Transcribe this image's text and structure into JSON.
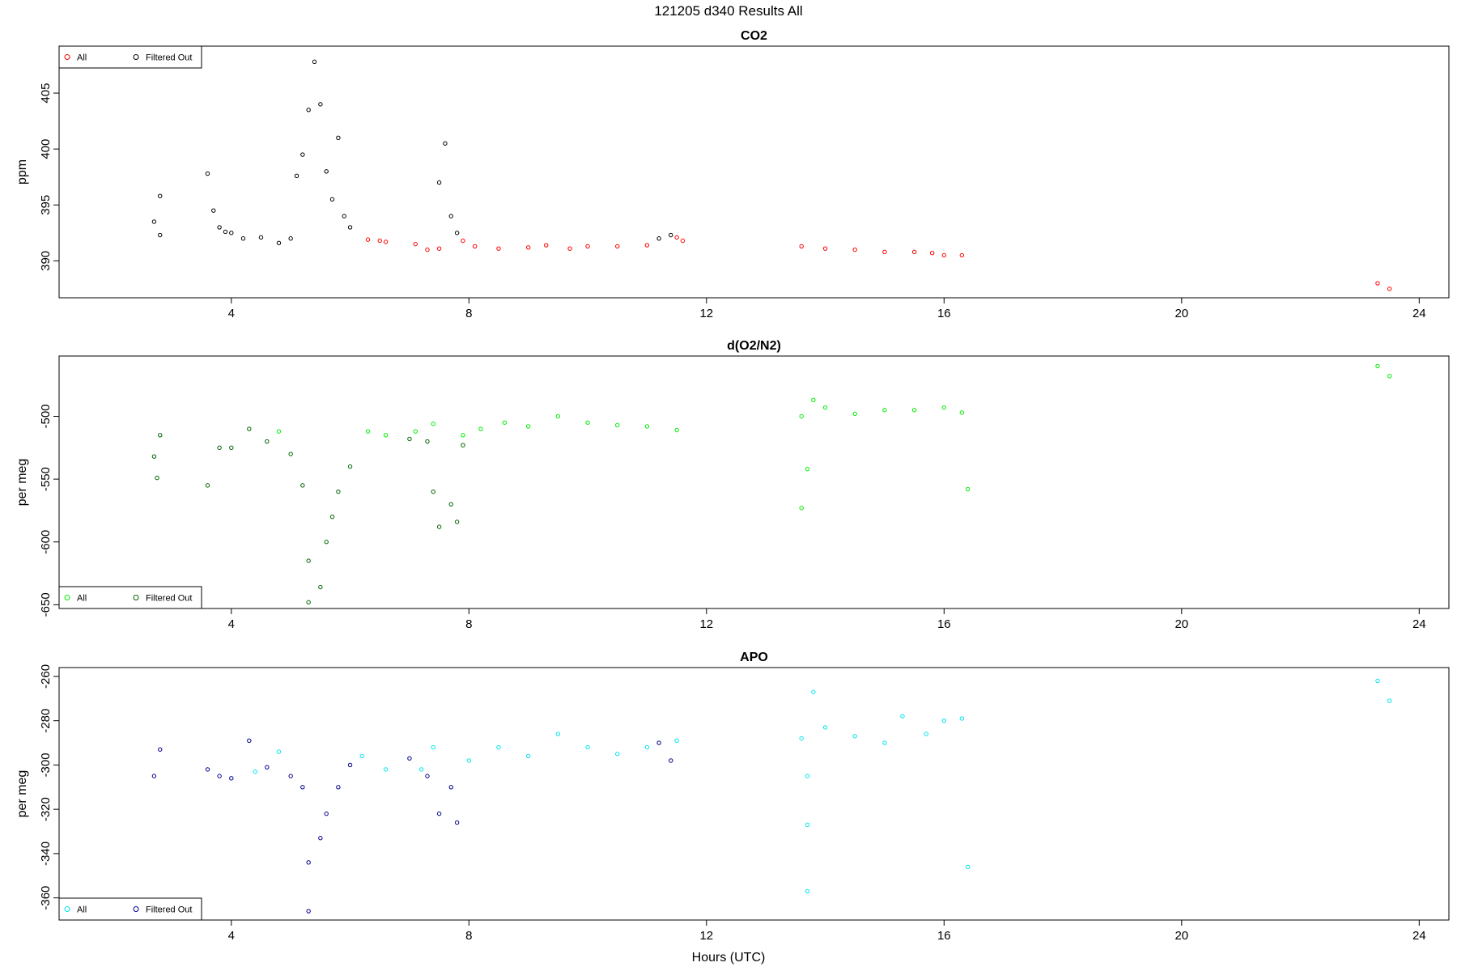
{
  "suptitle": "121205   d340   Results All",
  "xlabel": "Hours (UTC)",
  "chart_data": [
    {
      "type": "scatter",
      "title": "CO2",
      "ylabel": "ppm",
      "xlim": [
        1.1,
        24.5
      ],
      "ylim": [
        386.7,
        409.2
      ],
      "xticks": [
        4,
        8,
        12,
        16,
        20,
        24
      ],
      "yticks": [
        390,
        395,
        400,
        405
      ],
      "legend_position": "top-left",
      "series": [
        {
          "name": "All",
          "color": "#ff0000",
          "points": [
            [
              6.3,
              391.9
            ],
            [
              6.5,
              391.8
            ],
            [
              6.6,
              391.7
            ],
            [
              7.1,
              391.5
            ],
            [
              7.3,
              391.0
            ],
            [
              7.5,
              391.1
            ],
            [
              7.9,
              391.8
            ],
            [
              8.1,
              391.3
            ],
            [
              8.5,
              391.1
            ],
            [
              9.0,
              391.2
            ],
            [
              9.3,
              391.4
            ],
            [
              9.7,
              391.1
            ],
            [
              10.0,
              391.3
            ],
            [
              10.5,
              391.3
            ],
            [
              11.0,
              391.4
            ],
            [
              11.5,
              392.1
            ],
            [
              11.6,
              391.8
            ],
            [
              13.6,
              391.3
            ],
            [
              14.0,
              391.1
            ],
            [
              14.5,
              391.0
            ],
            [
              15.0,
              390.8
            ],
            [
              15.5,
              390.8
            ],
            [
              15.8,
              390.7
            ],
            [
              16.0,
              390.5
            ],
            [
              16.3,
              390.5
            ],
            [
              23.3,
              388.0
            ],
            [
              23.5,
              387.5
            ]
          ]
        },
        {
          "name": "Filtered Out",
          "color": "#000000",
          "points": [
            [
              2.7,
              393.5
            ],
            [
              2.8,
              392.3
            ],
            [
              2.8,
              395.8
            ],
            [
              3.6,
              397.8
            ],
            [
              3.7,
              394.5
            ],
            [
              3.8,
              393.0
            ],
            [
              3.9,
              392.6
            ],
            [
              4.0,
              392.5
            ],
            [
              4.2,
              392.0
            ],
            [
              4.5,
              392.1
            ],
            [
              4.8,
              391.6
            ],
            [
              5.0,
              392.0
            ],
            [
              5.1,
              397.6
            ],
            [
              5.2,
              399.5
            ],
            [
              5.3,
              403.5
            ],
            [
              5.4,
              407.8
            ],
            [
              5.5,
              404.0
            ],
            [
              5.6,
              398.0
            ],
            [
              5.7,
              395.5
            ],
            [
              5.8,
              401.0
            ],
            [
              5.9,
              394.0
            ],
            [
              6.0,
              393.0
            ],
            [
              7.5,
              397.0
            ],
            [
              7.6,
              400.5
            ],
            [
              7.7,
              394.0
            ],
            [
              7.8,
              392.5
            ],
            [
              11.2,
              392.0
            ],
            [
              11.4,
              392.3
            ]
          ]
        }
      ]
    },
    {
      "type": "scatter",
      "title": "d(O2/N2)",
      "ylabel": "per meg",
      "xlim": [
        1.1,
        24.5
      ],
      "ylim": [
        -653,
        -452
      ],
      "xticks": [
        4,
        8,
        12,
        16,
        20,
        24
      ],
      "yticks": [
        -650,
        -600,
        -550,
        -500
      ],
      "legend_position": "bottom-left",
      "series": [
        {
          "name": "All",
          "color": "#00ee00",
          "points": [
            [
              4.8,
              -512
            ],
            [
              6.3,
              -512
            ],
            [
              6.6,
              -515
            ],
            [
              7.1,
              -512
            ],
            [
              7.4,
              -506
            ],
            [
              7.9,
              -515
            ],
            [
              8.2,
              -510
            ],
            [
              8.6,
              -505
            ],
            [
              9.0,
              -508
            ],
            [
              9.5,
              -500
            ],
            [
              10.0,
              -505
            ],
            [
              10.5,
              -507
            ],
            [
              11.0,
              -508
            ],
            [
              11.5,
              -511
            ],
            [
              13.6,
              -500
            ],
            [
              13.8,
              -487
            ],
            [
              14.0,
              -493
            ],
            [
              14.5,
              -498
            ],
            [
              15.0,
              -495
            ],
            [
              15.5,
              -495
            ],
            [
              16.0,
              -493
            ],
            [
              16.3,
              -497
            ],
            [
              13.7,
              -542
            ],
            [
              13.6,
              -573
            ],
            [
              16.4,
              -558
            ],
            [
              23.3,
              -460
            ],
            [
              23.5,
              -468
            ]
          ]
        },
        {
          "name": "Filtered Out",
          "color": "#006400",
          "points": [
            [
              2.7,
              -532
            ],
            [
              2.75,
              -549
            ],
            [
              2.8,
              -515
            ],
            [
              3.6,
              -555
            ],
            [
              3.8,
              -525
            ],
            [
              4.0,
              -525
            ],
            [
              4.3,
              -510
            ],
            [
              4.6,
              -520
            ],
            [
              5.0,
              -530
            ],
            [
              5.2,
              -555
            ],
            [
              5.3,
              -615
            ],
            [
              5.3,
              -648
            ],
            [
              5.5,
              -636
            ],
            [
              5.6,
              -600
            ],
            [
              5.7,
              -580
            ],
            [
              5.8,
              -560
            ],
            [
              6.0,
              -540
            ],
            [
              7.0,
              -518
            ],
            [
              7.3,
              -520
            ],
            [
              7.4,
              -560
            ],
            [
              7.5,
              -588
            ],
            [
              7.7,
              -570
            ],
            [
              7.8,
              -584
            ],
            [
              7.9,
              -523
            ]
          ]
        }
      ]
    },
    {
      "type": "scatter",
      "title": "APO",
      "ylabel": "per meg",
      "xlim": [
        1.1,
        24.5
      ],
      "ylim": [
        -370,
        -256
      ],
      "xticks": [
        4,
        8,
        12,
        16,
        20,
        24
      ],
      "yticks": [
        -360,
        -340,
        -320,
        -300,
        -280,
        -260
      ],
      "legend_position": "bottom-left",
      "series": [
        {
          "name": "All",
          "color": "#00e5ee",
          "points": [
            [
              4.4,
              -303
            ],
            [
              4.8,
              -294
            ],
            [
              6.2,
              -296
            ],
            [
              6.6,
              -302
            ],
            [
              7.2,
              -302
            ],
            [
              7.4,
              -292
            ],
            [
              8.0,
              -298
            ],
            [
              8.5,
              -292
            ],
            [
              9.0,
              -296
            ],
            [
              9.5,
              -286
            ],
            [
              10.0,
              -292
            ],
            [
              10.5,
              -295
            ],
            [
              11.0,
              -292
            ],
            [
              11.5,
              -289
            ],
            [
              13.6,
              -288
            ],
            [
              13.7,
              -305
            ],
            [
              13.8,
              -267
            ],
            [
              14.0,
              -283
            ],
            [
              14.5,
              -287
            ],
            [
              15.0,
              -290
            ],
            [
              15.3,
              -278
            ],
            [
              15.7,
              -286
            ],
            [
              16.0,
              -280
            ],
            [
              16.3,
              -279
            ],
            [
              13.7,
              -327
            ],
            [
              13.7,
              -357
            ],
            [
              16.4,
              -346
            ],
            [
              23.3,
              -262
            ],
            [
              23.5,
              -271
            ]
          ]
        },
        {
          "name": "Filtered Out",
          "color": "#00008b",
          "points": [
            [
              2.7,
              -305
            ],
            [
              2.8,
              -293
            ],
            [
              3.6,
              -302
            ],
            [
              3.8,
              -305
            ],
            [
              4.0,
              -306
            ],
            [
              4.3,
              -289
            ],
            [
              4.6,
              -301
            ],
            [
              5.0,
              -305
            ],
            [
              5.2,
              -310
            ],
            [
              5.3,
              -344
            ],
            [
              5.3,
              -366
            ],
            [
              5.5,
              -333
            ],
            [
              5.6,
              -322
            ],
            [
              5.8,
              -310
            ],
            [
              6.0,
              -300
            ],
            [
              7.0,
              -297
            ],
            [
              7.3,
              -305
            ],
            [
              7.5,
              -322
            ],
            [
              7.7,
              -310
            ],
            [
              7.8,
              -326
            ],
            [
              11.2,
              -290
            ],
            [
              11.4,
              -298
            ]
          ]
        }
      ]
    }
  ]
}
